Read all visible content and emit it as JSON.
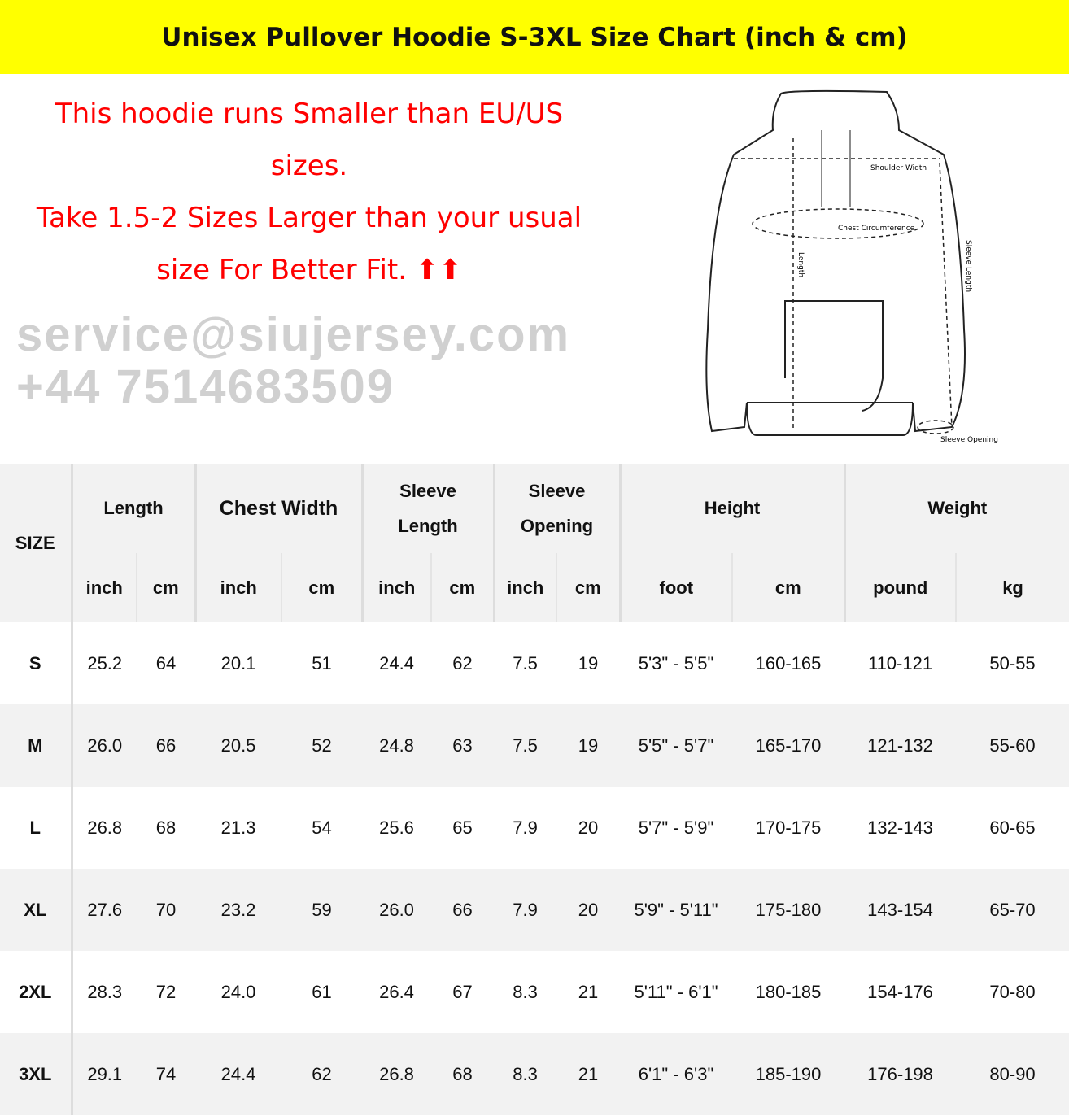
{
  "title": "Unisex Pullover Hoodie S-3XL Size Chart (inch & cm)",
  "note": {
    "line1": "This hoodie runs Smaller than EU/US sizes.",
    "line2": "Take 1.5-2 Sizes Larger than your usual size For Better Fit. ⬆⬆"
  },
  "diagram": {
    "labels": {
      "shoulder": "Shoulder Width",
      "chest": "Chest Circumference",
      "length": "Length",
      "sleeve_length": "Sleeve Length",
      "sleeve_opening": "Sleeve Opening"
    }
  },
  "watermark": "service@siujersey.com   +44 7514683509",
  "colors": {
    "banner": "#ffff00",
    "note": "#ff0000",
    "stripe": "#f2f2f2"
  },
  "table": {
    "size_header": "SIZE",
    "groups": [
      "Length",
      "Chest Width",
      "Sleeve Length",
      "Sleeve Opening",
      "Height",
      "Weight"
    ],
    "units": [
      "inch",
      "cm",
      "inch",
      "cm",
      "inch",
      "cm",
      "inch",
      "cm",
      "foot",
      "cm",
      "pound",
      "kg"
    ],
    "rows": [
      [
        "S",
        "25.2",
        "64",
        "20.1",
        "51",
        "24.4",
        "62",
        "7.5",
        "19",
        "5'3\" - 5'5\"",
        "160-165",
        "110-121",
        "50-55"
      ],
      [
        "M",
        "26.0",
        "66",
        "20.5",
        "52",
        "24.8",
        "63",
        "7.5",
        "19",
        "5'5\" - 5'7\"",
        "165-170",
        "121-132",
        "55-60"
      ],
      [
        "L",
        "26.8",
        "68",
        "21.3",
        "54",
        "25.6",
        "65",
        "7.9",
        "20",
        "5'7\" - 5'9\"",
        "170-175",
        "132-143",
        "60-65"
      ],
      [
        "XL",
        "27.6",
        "70",
        "23.2",
        "59",
        "26.0",
        "66",
        "7.9",
        "20",
        "5'9\" - 5'11\"",
        "175-180",
        "143-154",
        "65-70"
      ],
      [
        "2XL",
        "28.3",
        "72",
        "24.0",
        "61",
        "26.4",
        "67",
        "8.3",
        "21",
        "5'11\" - 6'1\"",
        "180-185",
        "154-176",
        "70-80"
      ],
      [
        "3XL",
        "29.1",
        "74",
        "24.4",
        "62",
        "26.8",
        "68",
        "8.3",
        "21",
        "6'1\" - 6'3\"",
        "185-190",
        "176-198",
        "80-90"
      ]
    ]
  }
}
